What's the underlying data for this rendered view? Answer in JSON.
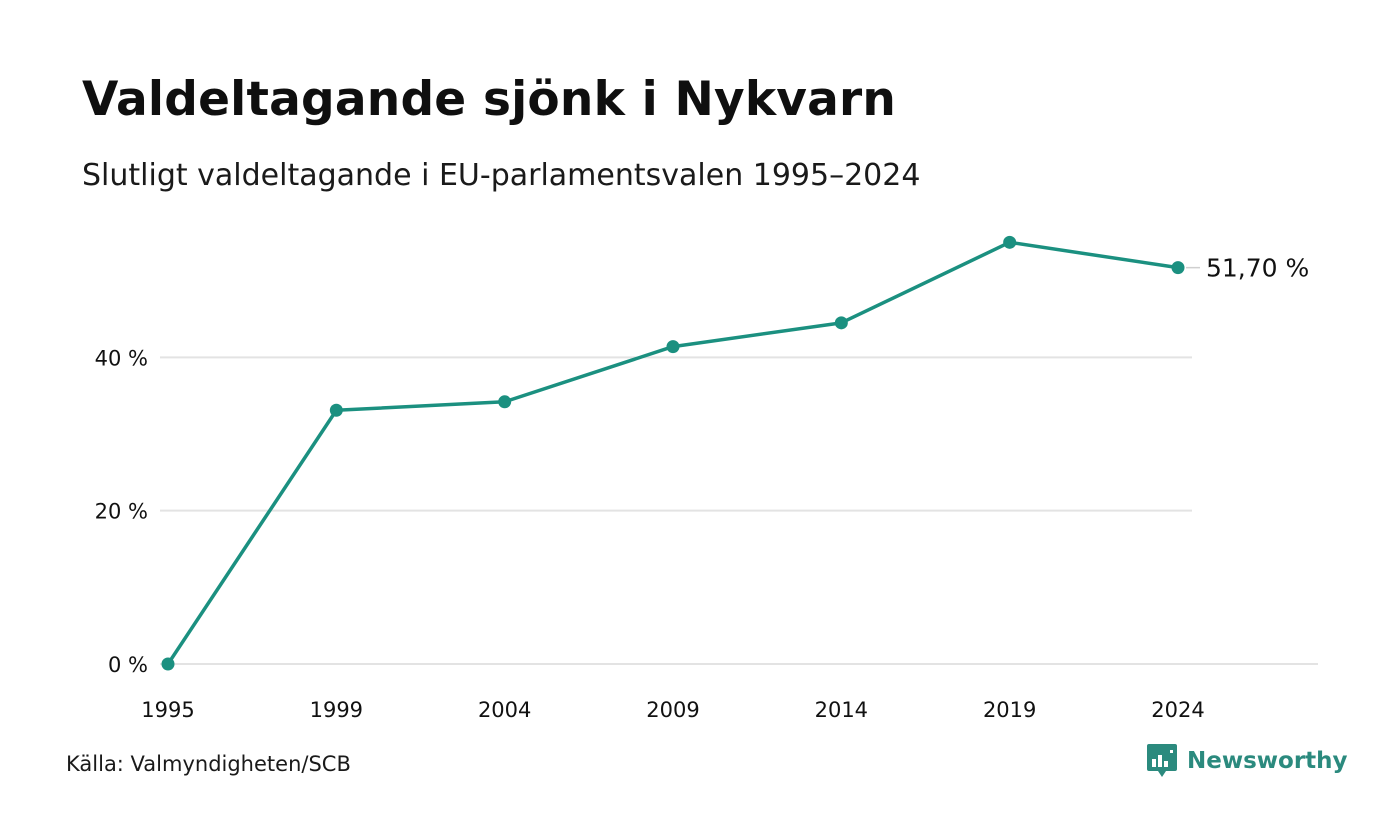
{
  "header": {
    "title": "Valdeltagande sjönk i Nykvarn",
    "subtitle": "Slutligt valdeltagande i EU-parlamentsvalen 1995–2024"
  },
  "footer": {
    "source": "Källa: Valmyndigheten/SCB",
    "brand": "Newsworthy",
    "brand_icon": "bar-chart-speech-bubble-icon"
  },
  "colors": {
    "line": "#1b9080",
    "grid": "#e3e3e3",
    "text": "#111111",
    "brand": "#2b8a7e"
  },
  "chart_data": {
    "type": "line",
    "title": "Valdeltagande sjönk i Nykvarn",
    "subtitle": "Slutligt valdeltagande i EU-parlamentsvalen 1995–2024",
    "xlabel": "",
    "ylabel": "",
    "categories": [
      "1995",
      "1999",
      "2004",
      "2009",
      "2014",
      "2019",
      "2024"
    ],
    "x": [
      1995,
      1999,
      2004,
      2009,
      2014,
      2019,
      2024
    ],
    "series": [
      {
        "values": [
          0,
          33.1,
          34.2,
          41.4,
          44.5,
          55.0,
          51.7
        ]
      }
    ],
    "y_ticks": [
      0,
      20,
      40
    ],
    "y_tick_labels": [
      "0 %",
      "20 %",
      "40 %"
    ],
    "ylim": [
      0,
      60
    ],
    "xlim": [
      1995,
      2028
    ],
    "grid": true,
    "end_label": "51,70 %",
    "legend": "none"
  }
}
